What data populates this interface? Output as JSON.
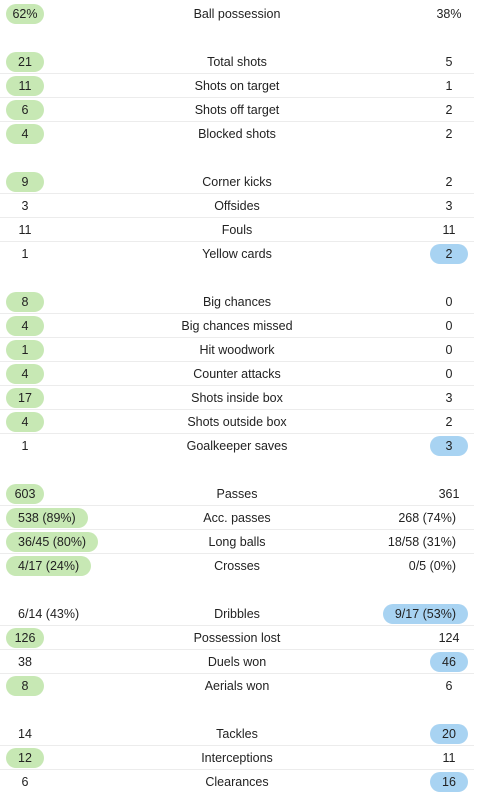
{
  "colors": {
    "home_highlight": "#c7e8b4",
    "away_highlight": "#a8d3f2",
    "divider": "#ececec"
  },
  "groups": [
    {
      "rows": [
        {
          "name": "Ball possession",
          "home": "62%",
          "away": "38%",
          "highlight": "home"
        }
      ]
    },
    {
      "rows": [
        {
          "name": "Total shots",
          "home": "21",
          "away": "5",
          "highlight": "home"
        },
        {
          "name": "Shots on target",
          "home": "11",
          "away": "1",
          "highlight": "home"
        },
        {
          "name": "Shots off target",
          "home": "6",
          "away": "2",
          "highlight": "home"
        },
        {
          "name": "Blocked shots",
          "home": "4",
          "away": "2",
          "highlight": "home"
        }
      ]
    },
    {
      "rows": [
        {
          "name": "Corner kicks",
          "home": "9",
          "away": "2",
          "highlight": "home"
        },
        {
          "name": "Offsides",
          "home": "3",
          "away": "3",
          "highlight": "none"
        },
        {
          "name": "Fouls",
          "home": "11",
          "away": "11",
          "highlight": "none"
        },
        {
          "name": "Yellow cards",
          "home": "1",
          "away": "2",
          "highlight": "away"
        }
      ]
    },
    {
      "rows": [
        {
          "name": "Big chances",
          "home": "8",
          "away": "0",
          "highlight": "home"
        },
        {
          "name": "Big chances missed",
          "home": "4",
          "away": "0",
          "highlight": "home"
        },
        {
          "name": "Hit woodwork",
          "home": "1",
          "away": "0",
          "highlight": "home"
        },
        {
          "name": "Counter attacks",
          "home": "4",
          "away": "0",
          "highlight": "home"
        },
        {
          "name": "Shots inside box",
          "home": "17",
          "away": "3",
          "highlight": "home"
        },
        {
          "name": "Shots outside box",
          "home": "4",
          "away": "2",
          "highlight": "home"
        },
        {
          "name": "Goalkeeper saves",
          "home": "1",
          "away": "3",
          "highlight": "away"
        }
      ]
    },
    {
      "rows": [
        {
          "name": "Passes",
          "home": "603",
          "away": "361",
          "highlight": "home"
        },
        {
          "name": "Acc. passes",
          "home": "538 (89%)",
          "away": "268 (74%)",
          "highlight": "home"
        },
        {
          "name": "Long balls",
          "home": "36/45 (80%)",
          "away": "18/58 (31%)",
          "highlight": "home"
        },
        {
          "name": "Crosses",
          "home": "4/17 (24%)",
          "away": "0/5 (0%)",
          "highlight": "home"
        }
      ]
    },
    {
      "rows": [
        {
          "name": "Dribbles",
          "home": "6/14 (43%)",
          "away": "9/17 (53%)",
          "highlight": "away"
        },
        {
          "name": "Possession lost",
          "home": "126",
          "away": "124",
          "highlight": "home"
        },
        {
          "name": "Duels won",
          "home": "38",
          "away": "46",
          "highlight": "away"
        },
        {
          "name": "Aerials won",
          "home": "8",
          "away": "6",
          "highlight": "home"
        }
      ]
    },
    {
      "rows": [
        {
          "name": "Tackles",
          "home": "14",
          "away": "20",
          "highlight": "away"
        },
        {
          "name": "Interceptions",
          "home": "12",
          "away": "11",
          "highlight": "home"
        },
        {
          "name": "Clearances",
          "home": "6",
          "away": "16",
          "highlight": "away"
        }
      ]
    }
  ]
}
